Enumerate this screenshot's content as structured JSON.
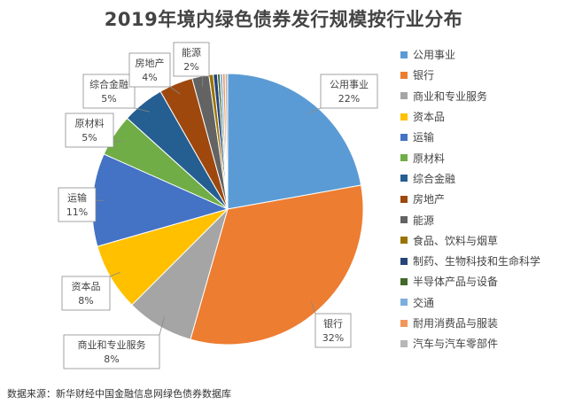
{
  "chart_data": {
    "type": "pie",
    "title": "2019年境内绿色债券发行规模按行业分布",
    "slices": [
      {
        "label": "公用事业",
        "value": 22,
        "pct_label": "22%",
        "color": "#5b9bd5"
      },
      {
        "label": "银行",
        "value": 32,
        "pct_label": "32%",
        "color": "#ed7d31"
      },
      {
        "label": "商业和专业服务",
        "value": 8,
        "pct_label": "8%",
        "color": "#a5a5a5"
      },
      {
        "label": "资本品",
        "value": 8,
        "pct_label": "8%",
        "color": "#ffc000"
      },
      {
        "label": "运输",
        "value": 11,
        "pct_label": "11%",
        "color": "#4472c4"
      },
      {
        "label": "原材料",
        "value": 5,
        "pct_label": "5%",
        "color": "#70ad47"
      },
      {
        "label": "综合金融",
        "value": 5,
        "pct_label": "5%",
        "color": "#255e91"
      },
      {
        "label": "房地产",
        "value": 4,
        "pct_label": "4%",
        "color": "#9e480e"
      },
      {
        "label": "能源",
        "value": 2,
        "pct_label": "2%",
        "color": "#636363"
      },
      {
        "label": "食品、饮料与烟草",
        "value": 0.5,
        "pct_label": "",
        "color": "#997300"
      },
      {
        "label": "制药、生物科技和生命科学",
        "value": 0.5,
        "pct_label": "",
        "color": "#264478"
      },
      {
        "label": "半导体产品与设备",
        "value": 0.3,
        "pct_label": "",
        "color": "#43682b"
      },
      {
        "label": "交通",
        "value": 0.3,
        "pct_label": "",
        "color": "#7cafdd"
      },
      {
        "label": "耐用消费品与服装",
        "value": 0.3,
        "pct_label": "",
        "color": "#f1975a"
      },
      {
        "label": "汽车与汽车零部件",
        "value": 0.3,
        "pct_label": "",
        "color": "#b7b7b7"
      }
    ],
    "legend_position": "right"
  },
  "source": "数据来源：新华财经中国金融信息网绿色债券数据库"
}
